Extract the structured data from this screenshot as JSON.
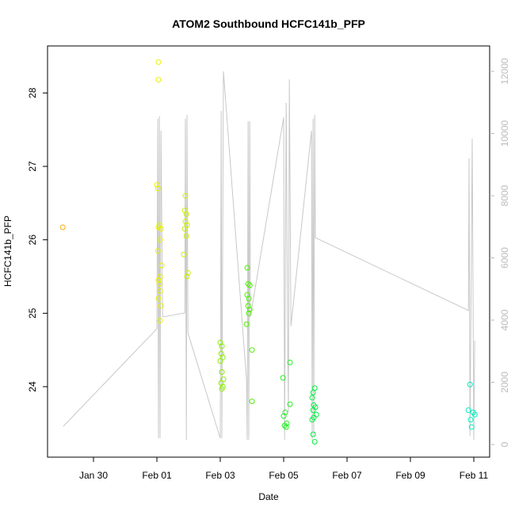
{
  "chart_data": {
    "type": "scatter",
    "title": "ATOM2 Southbound HCFC141b_PFP",
    "x_label": "Date",
    "y_label": "HCFC141b_PFP",
    "xlim": [
      28.55,
      42.5
    ],
    "xticks": [
      {
        "value": 30,
        "label": "Jan 30"
      },
      {
        "value": 32,
        "label": "Feb 01"
      },
      {
        "value": 34,
        "label": "Feb 03"
      },
      {
        "value": 36,
        "label": "Feb 05"
      },
      {
        "value": 38,
        "label": "Feb 07"
      },
      {
        "value": 40,
        "label": "Feb 09"
      },
      {
        "value": 42,
        "label": "Feb 11"
      }
    ],
    "ylim": [
      23.04,
      28.64
    ],
    "yticks": [
      24,
      25,
      26,
      27,
      28
    ],
    "y2lim": [
      -408,
      12815
    ],
    "y2ticks": [
      0,
      2000,
      4000,
      6000,
      8000,
      10000,
      12000
    ],
    "series": [
      {
        "type": "line",
        "axis": "y2",
        "color": "#c8c8c8",
        "x": [
          29.05,
          32.0,
          32.03,
          32.05,
          32.08,
          32.1,
          32.13,
          32.18,
          32.88,
          32.9,
          32.93,
          32.95,
          32.98,
          34.0,
          34.03,
          34.05,
          34.1,
          34.83,
          34.85,
          34.88,
          34.9,
          34.93,
          34.95,
          36.0,
          36.03,
          36.08,
          36.13,
          36.15,
          36.18,
          36.23,
          36.88,
          36.9,
          36.93,
          36.95,
          36.98,
          37.0,
          41.83,
          41.85,
          41.88,
          41.95,
          42.0,
          42.03
        ],
        "values": [
          586,
          3720,
          10470,
          200,
          10550,
          200,
          10090,
          4100,
          4230,
          10470,
          150,
          10600,
          3590,
          200,
          10730,
          200,
          12000,
          2060,
          150,
          10390,
          150,
          10390,
          4100,
          10520,
          150,
          10980,
          2960,
          1040,
          11740,
          3800,
          10090,
          150,
          10470,
          280,
          10600,
          6650,
          4310,
          9200,
          280,
          9830,
          150,
          3340
        ]
      },
      {
        "color": "#ffa500",
        "x": [
          29.03
        ],
        "values": [
          26.17
        ]
      },
      {
        "color": "#e8f000",
        "x": [
          32.05,
          32.05,
          32.0,
          32.03,
          32.08,
          32.05,
          32.13,
          32.1,
          32.03,
          32.15,
          32.1,
          32.05,
          32.08,
          32.1,
          32.05,
          32.13,
          32.1
        ],
        "values": [
          28.42,
          28.18,
          26.75,
          26.7,
          26.2,
          26.17,
          26.15,
          26.0,
          25.85,
          25.65,
          25.5,
          25.45,
          25.4,
          25.3,
          25.2,
          25.1,
          24.9
        ]
      },
      {
        "color": "#ccf000",
        "x": [
          32.9,
          32.88,
          32.93,
          32.9,
          32.95,
          32.88,
          32.93,
          32.85,
          32.98,
          32.95
        ],
        "values": [
          26.6,
          26.4,
          26.35,
          26.25,
          26.2,
          26.15,
          26.05,
          25.8,
          25.55,
          25.5
        ]
      },
      {
        "color": "#88f000",
        "x": [
          34.0,
          34.05,
          34.03,
          34.08,
          34.0,
          34.05,
          34.1,
          34.03,
          34.08,
          34.05
        ],
        "values": [
          24.6,
          24.55,
          24.45,
          24.4,
          24.35,
          24.2,
          24.1,
          24.05,
          24.0,
          23.97
        ]
      },
      {
        "color": "#4cf000",
        "x": [
          34.85,
          34.88,
          34.93,
          34.85,
          34.9,
          34.88,
          34.93,
          34.9,
          34.83,
          35.0,
          35.0
        ],
        "values": [
          25.62,
          25.4,
          25.38,
          25.25,
          25.2,
          25.1,
          25.05,
          25.0,
          24.85,
          24.5,
          23.8
        ]
      },
      {
        "color": "#22f022",
        "x": [
          36.2,
          35.98,
          36.2,
          36.05,
          36.0,
          36.1,
          36.03,
          36.08
        ],
        "values": [
          24.33,
          24.12,
          23.76,
          23.65,
          23.6,
          23.5,
          23.47,
          23.45
        ]
      },
      {
        "color": "#00f040",
        "x": [
          36.98,
          36.93,
          36.9,
          36.95,
          37.0,
          36.93,
          37.03,
          36.95,
          36.9,
          36.93,
          36.98
        ],
        "values": [
          23.98,
          23.92,
          23.85,
          23.75,
          23.72,
          23.68,
          23.62,
          23.58,
          23.55,
          23.35,
          23.25
        ]
      },
      {
        "color": "#00f0c0",
        "x": [
          41.88,
          41.83,
          41.98,
          42.03,
          41.9,
          41.93
        ],
        "values": [
          24.03,
          23.68,
          23.65,
          23.62,
          23.55,
          23.45
        ]
      }
    ]
  }
}
